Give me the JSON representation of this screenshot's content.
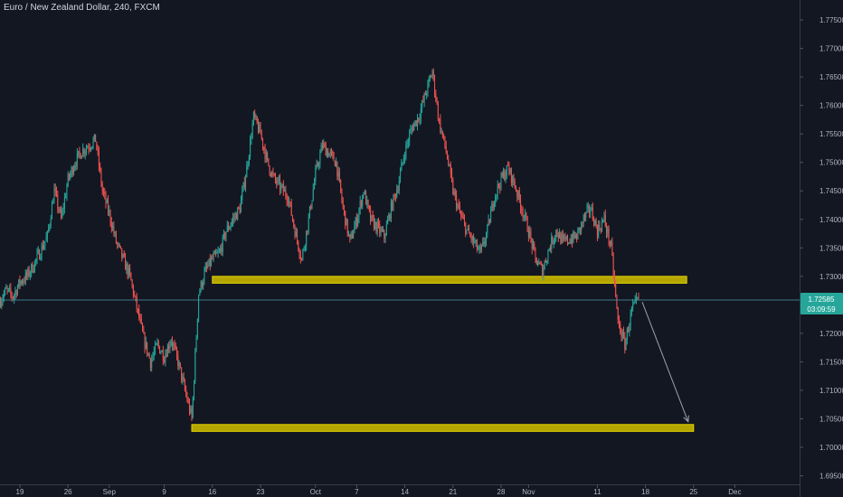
{
  "header": {
    "title": "Euro / New Zealand Dollar, 240, FXCM"
  },
  "colors": {
    "background": "#131722",
    "up": "#26a69a",
    "down": "#ef5350",
    "zone_fill": "#b5a500",
    "zone_border": "#e3d400",
    "price_line": "#4a9aa8",
    "arrow": "#9aa3b0"
  },
  "price_tag": {
    "price": "1.72585",
    "countdown": "03:09:59"
  },
  "chart_data": {
    "type": "candlestick",
    "title": "Euro / New Zealand Dollar, 240, FXCM",
    "xlabel": "",
    "ylabel": "",
    "ylim": [
      1.6935,
      1.7785
    ],
    "y_ticks": [
      "1.77500",
      "1.77000",
      "1.76500",
      "1.76000",
      "1.75500",
      "1.75000",
      "1.74500",
      "1.74000",
      "1.73500",
      "1.73000",
      "1.72500",
      "1.72000",
      "1.71500",
      "1.71000",
      "1.70500",
      "1.70000",
      "1.69500"
    ],
    "x_ticks": [
      {
        "label": "19",
        "date": "2021-08-19"
      },
      {
        "label": "26",
        "date": "2021-08-26"
      },
      {
        "label": "Sep",
        "date": "2021-09-01"
      },
      {
        "label": "9",
        "date": "2021-09-09"
      },
      {
        "label": "16",
        "date": "2021-09-16"
      },
      {
        "label": "23",
        "date": "2021-09-23"
      },
      {
        "label": "Oct",
        "date": "2021-10-01"
      },
      {
        "label": "7",
        "date": "2021-10-07"
      },
      {
        "label": "14",
        "date": "2021-10-14"
      },
      {
        "label": "21",
        "date": "2021-10-21"
      },
      {
        "label": "28",
        "date": "2021-10-28"
      },
      {
        "label": "Nov",
        "date": "2021-11-01"
      },
      {
        "label": "11",
        "date": "2021-11-11"
      },
      {
        "label": "18",
        "date": "2021-11-18"
      },
      {
        "label": "25",
        "date": "2021-11-25"
      },
      {
        "label": "Dec",
        "date": "2021-12-01"
      }
    ],
    "close_path": [
      [
        "2021-08-16",
        1.7255
      ],
      [
        "2021-08-17",
        1.7275
      ],
      [
        "2021-08-18",
        1.7265
      ],
      [
        "2021-08-19",
        1.729
      ],
      [
        "2021-08-20",
        1.73
      ],
      [
        "2021-08-21",
        1.732
      ],
      [
        "2021-08-23",
        1.737
      ],
      [
        "2021-08-24",
        1.745
      ],
      [
        "2021-08-25",
        1.74
      ],
      [
        "2021-08-26",
        1.747
      ],
      [
        "2021-08-27",
        1.75
      ],
      [
        "2021-08-28",
        1.752
      ],
      [
        "2021-08-30",
        1.754
      ],
      [
        "2021-08-31",
        1.745
      ],
      [
        "2021-09-01",
        1.741
      ],
      [
        "2021-09-02",
        1.736
      ],
      [
        "2021-09-03",
        1.733
      ],
      [
        "2021-09-04",
        1.73
      ],
      [
        "2021-09-06",
        1.719
      ],
      [
        "2021-09-07",
        1.715
      ],
      [
        "2021-09-08",
        1.718
      ],
      [
        "2021-09-09",
        1.716
      ],
      [
        "2021-09-10",
        1.719
      ],
      [
        "2021-09-11",
        1.715
      ],
      [
        "2021-09-13",
        1.705
      ],
      [
        "2021-09-14",
        1.727
      ],
      [
        "2021-09-15",
        1.731
      ],
      [
        "2021-09-16",
        1.733
      ],
      [
        "2021-09-17",
        1.734
      ],
      [
        "2021-09-18",
        1.738
      ],
      [
        "2021-09-20",
        1.742
      ],
      [
        "2021-09-21",
        1.749
      ],
      [
        "2021-09-22",
        1.758
      ],
      [
        "2021-09-23",
        1.755
      ],
      [
        "2021-09-24",
        1.75
      ],
      [
        "2021-09-25",
        1.747
      ],
      [
        "2021-09-27",
        1.744
      ],
      [
        "2021-09-28",
        1.738
      ],
      [
        "2021-09-29",
        1.733
      ],
      [
        "2021-09-30",
        1.74
      ],
      [
        "2021-10-01",
        1.748
      ],
      [
        "2021-10-02",
        1.753
      ],
      [
        "2021-10-04",
        1.75
      ],
      [
        "2021-10-05",
        1.742
      ],
      [
        "2021-10-06",
        1.736
      ],
      [
        "2021-10-07",
        1.74
      ],
      [
        "2021-10-08",
        1.745
      ],
      [
        "2021-10-09",
        1.74
      ],
      [
        "2021-10-11",
        1.737
      ],
      [
        "2021-10-12",
        1.742
      ],
      [
        "2021-10-13",
        1.746
      ],
      [
        "2021-10-14",
        1.752
      ],
      [
        "2021-10-15",
        1.756
      ],
      [
        "2021-10-16",
        1.758
      ],
      [
        "2021-10-18",
        1.766
      ],
      [
        "2021-10-19",
        1.757
      ],
      [
        "2021-10-20",
        1.752
      ],
      [
        "2021-10-21",
        1.745
      ],
      [
        "2021-10-22",
        1.741
      ],
      [
        "2021-10-23",
        1.738
      ],
      [
        "2021-10-25",
        1.734
      ],
      [
        "2021-10-26",
        1.738
      ],
      [
        "2021-10-27",
        1.744
      ],
      [
        "2021-10-28",
        1.747
      ],
      [
        "2021-10-29",
        1.749
      ],
      [
        "2021-10-30",
        1.746
      ],
      [
        "2021-11-01",
        1.738
      ],
      [
        "2021-11-02",
        1.733
      ],
      [
        "2021-11-03",
        1.731
      ],
      [
        "2021-11-04",
        1.735
      ],
      [
        "2021-11-05",
        1.738
      ],
      [
        "2021-11-06",
        1.736
      ],
      [
        "2021-11-08",
        1.737
      ],
      [
        "2021-11-09",
        1.74
      ],
      [
        "2021-11-10",
        1.742
      ],
      [
        "2021-11-11",
        1.738
      ],
      [
        "2021-11-12",
        1.74
      ],
      [
        "2021-11-13",
        1.735
      ],
      [
        "2021-11-14",
        1.722
      ],
      [
        "2021-11-15",
        1.718
      ],
      [
        "2021-11-16",
        1.724
      ],
      [
        "2021-11-17",
        1.7259
      ]
    ],
    "zones": [
      {
        "y_top": 1.73,
        "y_bottom": 1.7288,
        "x_start": "2021-09-16",
        "x_end": "2021-11-24"
      },
      {
        "y_top": 1.704,
        "y_bottom": 1.7028,
        "x_start": "2021-09-13",
        "x_end": "2021-11-25"
      }
    ],
    "arrow": {
      "from": [
        "2021-11-17",
        1.7255
      ],
      "to": [
        "2021-11-25",
        1.7045
      ]
    },
    "last_price": 1.72585
  }
}
